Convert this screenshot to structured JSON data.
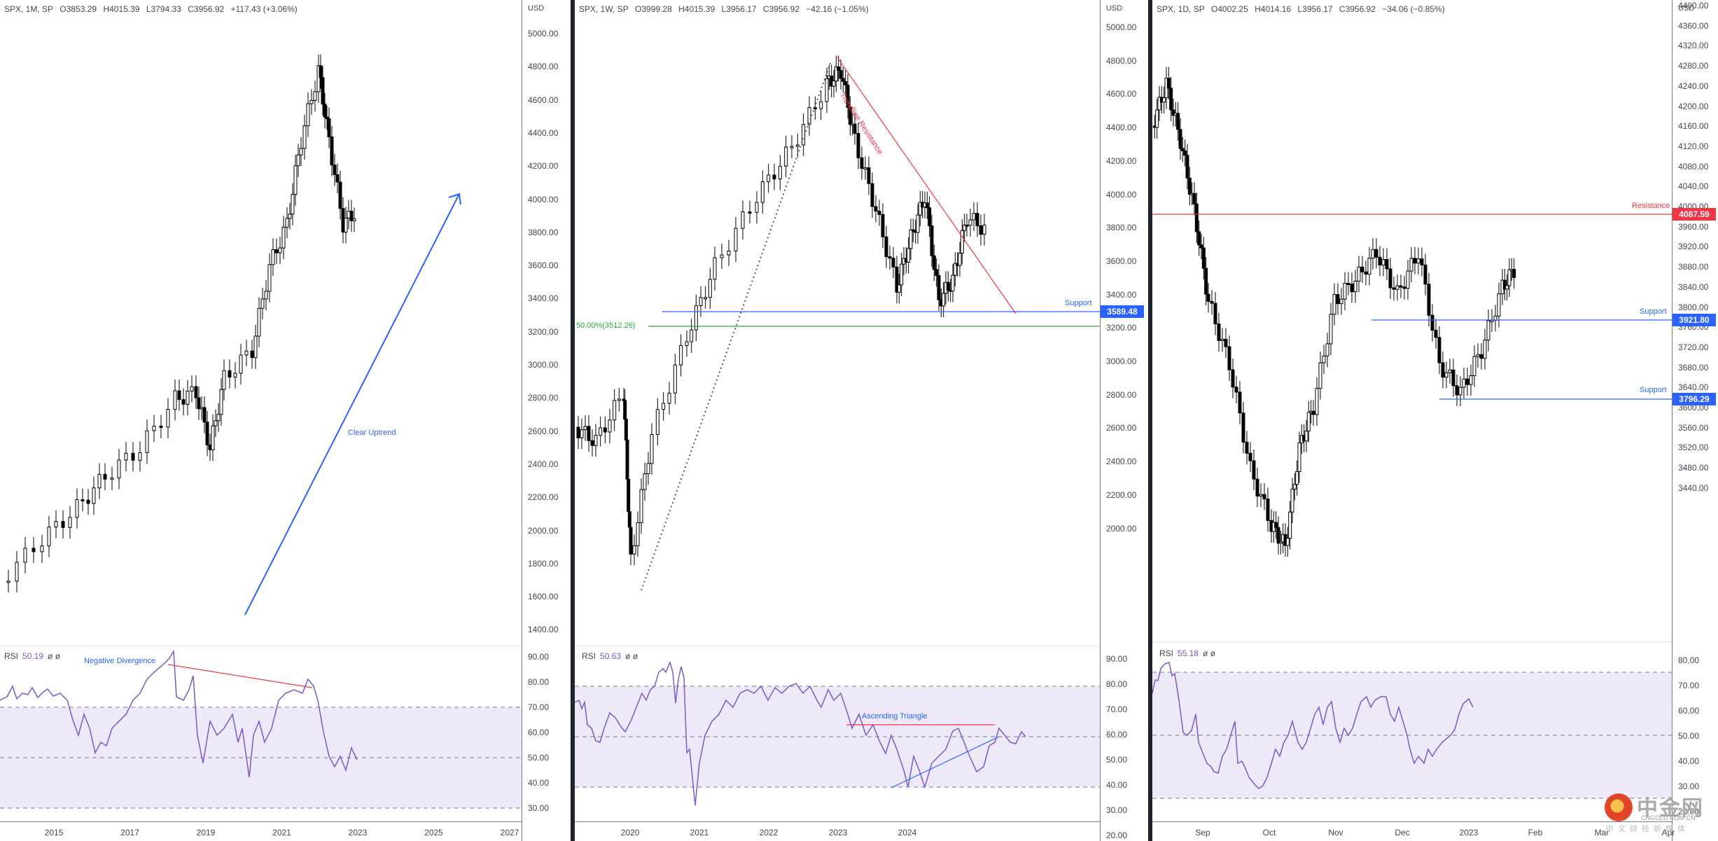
{
  "chart_data": [
    {
      "type": "candlestick",
      "title": "SPX, 1M, SP",
      "ohlc": {
        "open": "O3853.29",
        "high": "H4015.39",
        "low": "L3794.33",
        "close": "C3956.92",
        "change": "+117.43 (+3.06%)"
      },
      "currency": "USD",
      "y_ticks": [
        "5000.00",
        "4800.00",
        "4600.00",
        "4400.00",
        "4200.00",
        "4000.00",
        "3800.00",
        "3600.00",
        "3400.00",
        "3200.00",
        "3000.00",
        "2800.00",
        "2600.00",
        "2400.00",
        "2200.00",
        "2000.00",
        "1800.00",
        "1600.00",
        "1400.00"
      ],
      "ylim": [
        1400,
        5000
      ],
      "x_ticks": [
        "2015",
        "2017",
        "2019",
        "2021",
        "2023",
        "2025",
        "2027"
      ],
      "annotations": [
        {
          "text": "Clear Uptrend",
          "type": "arrow",
          "color": "#2962ff"
        }
      ],
      "rsi": {
        "label": "RSI",
        "value": "50.19",
        "extra": "ø ø",
        "y_ticks": [
          "90.00",
          "80.00",
          "70.00",
          "60.00",
          "50.00",
          "40.00",
          "30.00"
        ],
        "bands": [
          70,
          50,
          30
        ],
        "annotation": "Negative Divergence"
      }
    },
    {
      "type": "candlestick",
      "title": "SPX, 1W, SP",
      "ohlc": {
        "open": "O3999.28",
        "high": "H4015.39",
        "low": "L3956.17",
        "close": "C3956.92",
        "change": "−42.16 (−1.05%)"
      },
      "currency": "USD",
      "y_ticks": [
        "5000.00",
        "4800.00",
        "4600.00",
        "4400.00",
        "4200.00",
        "4000.00",
        "3800.00",
        "3600.00",
        "3400.00",
        "3200.00",
        "3000.00",
        "2800.00",
        "2600.00",
        "2400.00",
        "2200.00",
        "2000.00"
      ],
      "ylim": [
        2000,
        5000
      ],
      "x_ticks": [
        "2020",
        "2021",
        "2022",
        "2023",
        "2024"
      ],
      "annotations": [
        {
          "text": "Trendline Resistance",
          "type": "trendline",
          "color": "#f23645"
        },
        {
          "text": "Support",
          "type": "hline",
          "value": "3589.48",
          "color": "#2962ff"
        },
        {
          "text": "50.00%(3512.26)",
          "type": "fib",
          "color": "#22ab3c"
        }
      ],
      "rsi": {
        "label": "RSI",
        "value": "50.63",
        "extra": "ø ø",
        "y_ticks": [
          "90.00",
          "80.00",
          "70.00",
          "60.00",
          "50.00",
          "40.00",
          "30.00",
          "20.00"
        ],
        "bands": [
          80,
          60,
          40
        ],
        "annotation": "Ascending Triangle"
      }
    },
    {
      "type": "candlestick",
      "title": "SPX, 1D, SP",
      "ohlc": {
        "open": "O4002.25",
        "high": "H4014.16",
        "low": "L3956.17",
        "close": "C3956.92",
        "change": "−34.06 (−0.85%)"
      },
      "currency": "USD",
      "y_ticks": [
        "4400.00",
        "4360.00",
        "4320.00",
        "4280.00",
        "4240.00",
        "4200.00",
        "4160.00",
        "4120.00",
        "4080.00",
        "4040.00",
        "4000.00",
        "3960.00",
        "3920.00",
        "3880.00",
        "3840.00",
        "3800.00",
        "3760.00",
        "3720.00",
        "3680.00",
        "3640.00",
        "3600.00",
        "3560.00",
        "3520.00",
        "3480.00",
        "3440.00"
      ],
      "ylim": [
        3420,
        4400
      ],
      "x_ticks": [
        "Sep",
        "Oct",
        "Nov",
        "Dec",
        "2023",
        "Feb",
        "Mar",
        "Apr"
      ],
      "annotations": [
        {
          "text": "Resistance",
          "type": "hline",
          "value": "4087.59",
          "color": "#f23645"
        },
        {
          "text": "Support",
          "type": "hline",
          "value": "3921.80",
          "color": "#2962ff"
        },
        {
          "text": "Support",
          "type": "hline",
          "value": "3796.29",
          "color": "#2962ff"
        }
      ],
      "rsi": {
        "label": "RSI",
        "value": "55.18",
        "extra": "ø ø",
        "y_ticks": [
          "80.00",
          "70.00",
          "60.00",
          "50.00",
          "40.00",
          "30.00",
          "20.00"
        ],
        "bands": [
          75,
          50,
          25
        ]
      }
    }
  ],
  "watermark": {
    "cn": "中金网",
    "en": "CNGOLD.COM.CN",
    "sub": "中文财经新媒体"
  }
}
